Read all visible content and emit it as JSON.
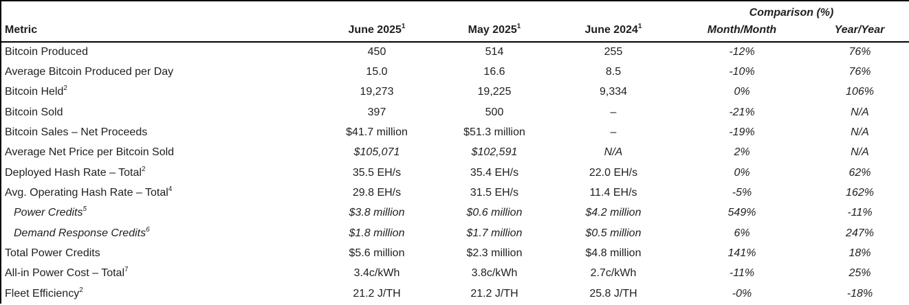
{
  "colors": {
    "background": "#ffffff",
    "text": "#1e1e1e",
    "border": "#000000"
  },
  "table": {
    "header": {
      "metric_label": "Metric",
      "comparison_label": "Comparison (%)",
      "month_columns": [
        {
          "label": "June 2025",
          "footnote": "1"
        },
        {
          "label": "May 2025",
          "footnote": "1"
        },
        {
          "label": "June 2024",
          "footnote": "1"
        }
      ],
      "comparison_columns": [
        {
          "label": "Month/Month"
        },
        {
          "label": "Year/Year"
        }
      ]
    },
    "rows": [
      {
        "label": "Bitcoin Produced",
        "footnote": "",
        "indent": false,
        "label_italic": false,
        "values": [
          "450",
          "514",
          "255"
        ],
        "values_italic": false,
        "month_over_month": "-12%",
        "year_over_year": "76%"
      },
      {
        "label": "Average Bitcoin Produced per Day",
        "footnote": "",
        "indent": false,
        "label_italic": false,
        "values": [
          "15.0",
          "16.6",
          "8.5"
        ],
        "values_italic": false,
        "month_over_month": "-10%",
        "year_over_year": "76%"
      },
      {
        "label": "Bitcoin Held",
        "footnote": "2",
        "indent": false,
        "label_italic": false,
        "values": [
          "19,273",
          "19,225",
          "9,334"
        ],
        "values_italic": false,
        "month_over_month": "0%",
        "year_over_year": "106%"
      },
      {
        "label": "Bitcoin Sold",
        "footnote": "",
        "indent": false,
        "label_italic": false,
        "values": [
          "397",
          "500",
          "–"
        ],
        "values_italic": false,
        "month_over_month": "-21%",
        "year_over_year": "N/A"
      },
      {
        "label": "Bitcoin Sales – Net Proceeds",
        "footnote": "",
        "indent": false,
        "label_italic": false,
        "values": [
          "$41.7 million",
          "$51.3 million",
          "–"
        ],
        "values_italic": false,
        "month_over_month": "-19%",
        "year_over_year": "N/A"
      },
      {
        "label": "Average Net Price per Bitcoin Sold",
        "footnote": "",
        "indent": false,
        "label_italic": false,
        "values": [
          "$105,071",
          "$102,591",
          "N/A"
        ],
        "values_italic": true,
        "month_over_month": "2%",
        "year_over_year": "N/A"
      },
      {
        "label": "Deployed Hash Rate – Total",
        "footnote": "2",
        "indent": false,
        "label_italic": false,
        "values": [
          "35.5 EH/s",
          "35.4 EH/s",
          "22.0 EH/s"
        ],
        "values_italic": false,
        "month_over_month": "0%",
        "year_over_year": "62%"
      },
      {
        "label": "Avg. Operating Hash Rate – Total",
        "footnote": "4",
        "indent": false,
        "label_italic": false,
        "values": [
          "29.8 EH/s",
          "31.5 EH/s",
          "11.4 EH/s"
        ],
        "values_italic": false,
        "month_over_month": "-5%",
        "year_over_year": "162%"
      },
      {
        "label": "Power Credits",
        "footnote": "5",
        "indent": true,
        "label_italic": true,
        "values": [
          "$3.8 million",
          "$0.6 million",
          "$4.2 million"
        ],
        "values_italic": true,
        "month_over_month": "549%",
        "year_over_year": "-11%"
      },
      {
        "label": "Demand Response Credits",
        "footnote": "6",
        "indent": true,
        "label_italic": true,
        "values": [
          "$1.8 million",
          "$1.7 million",
          "$0.5 million"
        ],
        "values_italic": true,
        "month_over_month": "6%",
        "year_over_year": "247%"
      },
      {
        "label": "Total Power Credits",
        "footnote": "",
        "indent": false,
        "label_italic": false,
        "values": [
          "$5.6 million",
          "$2.3 million",
          "$4.8 million"
        ],
        "values_italic": false,
        "month_over_month": "141%",
        "year_over_year": "18%"
      },
      {
        "label": "All-in Power Cost – Total",
        "footnote": "7",
        "indent": false,
        "label_italic": false,
        "values": [
          "3.4c/kWh",
          "3.8c/kWh",
          "2.7c/kWh"
        ],
        "values_italic": false,
        "month_over_month": "-11%",
        "year_over_year": "25%"
      },
      {
        "label": "Fleet Efficiency",
        "footnote": "2",
        "indent": false,
        "label_italic": false,
        "values": [
          "21.2 J/TH",
          "21.2 J/TH",
          "25.8 J/TH"
        ],
        "values_italic": false,
        "month_over_month": "-0%",
        "year_over_year": "-18%"
      }
    ]
  }
}
